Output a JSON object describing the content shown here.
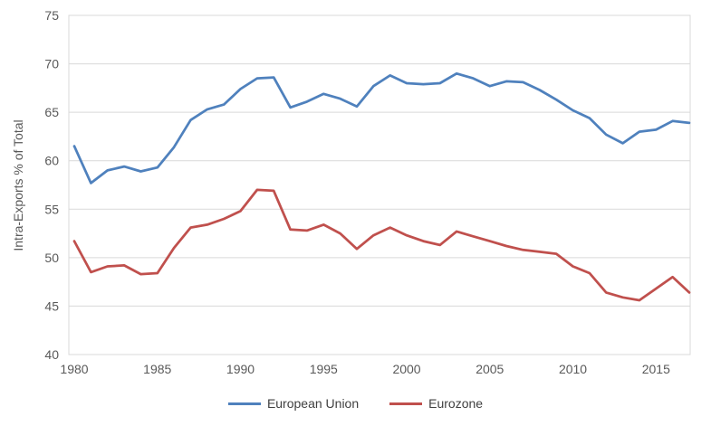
{
  "chart_data": {
    "type": "line",
    "title": "",
    "ylabel": "Intra-Exports % of Total",
    "xlabel": "",
    "ylim": [
      40,
      75
    ],
    "ytick_step": 5,
    "yticks": [
      40,
      45,
      50,
      55,
      60,
      65,
      70,
      75
    ],
    "xticks": [
      1980,
      1985,
      1990,
      1995,
      2000,
      2005,
      2010,
      2015
    ],
    "x_range": [
      1980,
      2017
    ],
    "grid": "horizontal",
    "legend_position": "bottom",
    "x": [
      1980,
      1981,
      1982,
      1983,
      1984,
      1985,
      1986,
      1987,
      1988,
      1989,
      1990,
      1991,
      1992,
      1993,
      1994,
      1995,
      1996,
      1997,
      1998,
      1999,
      2000,
      2001,
      2002,
      2003,
      2004,
      2005,
      2006,
      2007,
      2008,
      2009,
      2010,
      2011,
      2012,
      2013,
      2014,
      2015,
      2016,
      2017
    ],
    "series": [
      {
        "name": "European Union",
        "color": "#4F81BD",
        "values": [
          61.5,
          57.7,
          59.0,
          59.4,
          58.9,
          59.3,
          61.4,
          64.2,
          65.3,
          65.8,
          67.4,
          68.5,
          68.6,
          65.5,
          66.1,
          66.9,
          66.4,
          65.6,
          67.7,
          68.8,
          68.0,
          67.9,
          68.0,
          69.0,
          68.5,
          67.7,
          68.2,
          68.1,
          67.3,
          66.3,
          65.2,
          64.4,
          62.7,
          61.8,
          63.0,
          63.2,
          64.1,
          63.9
        ]
      },
      {
        "name": "Eurozone",
        "color": "#C0504D",
        "values": [
          51.7,
          48.5,
          49.1,
          49.2,
          48.3,
          48.4,
          51.0,
          53.1,
          53.4,
          54.0,
          54.8,
          57.0,
          56.9,
          52.9,
          52.8,
          53.4,
          52.5,
          50.9,
          52.3,
          53.1,
          52.3,
          51.7,
          51.3,
          52.7,
          52.2,
          51.7,
          51.2,
          50.8,
          50.6,
          50.4,
          49.1,
          48.4,
          46.4,
          45.9,
          45.6,
          46.8,
          48.0,
          46.4
        ]
      }
    ],
    "colors": {
      "gridline": "#D9D9D9",
      "plot_border": "#D9D9D9",
      "axis_text": "#595959",
      "legend_text": "#404040",
      "background": "#FFFFFF"
    }
  }
}
